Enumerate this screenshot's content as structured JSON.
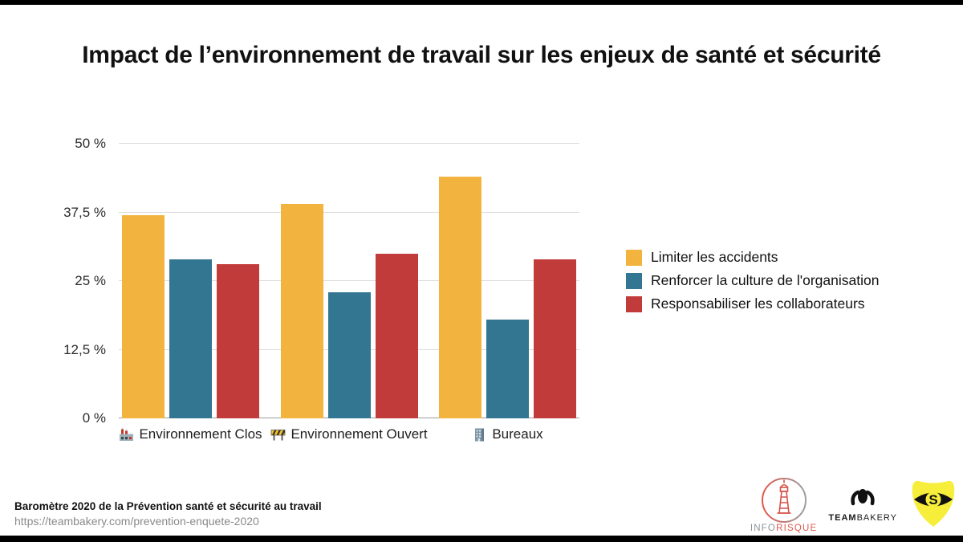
{
  "title": "Impact de l’environnement de travail sur les enjeux de santé et sécurité",
  "chart_data": {
    "type": "bar",
    "categories": [
      "Environnement Clos",
      "Environnement Ouvert",
      "Bureaux"
    ],
    "category_icons": [
      "factory-icon",
      "construction-barrier-icon",
      "office-building-icon"
    ],
    "series": [
      {
        "name": "Limiter les accidents",
        "color": "#F2B43F",
        "values": [
          37,
          39,
          44
        ]
      },
      {
        "name": "Renforcer la culture de l'organisation",
        "color": "#337691",
        "values": [
          29,
          23,
          18
        ]
      },
      {
        "name": "Responsabiliser les collaborateurs",
        "color": "#C23B3B",
        "values": [
          28,
          30,
          29
        ]
      }
    ],
    "unit": "%",
    "ylim": [
      0,
      50
    ],
    "ytick_values": [
      0,
      12.5,
      25,
      37.5,
      50
    ],
    "ytick_labels": [
      "0 %",
      "12,5 %",
      "25 %",
      "37,5 %",
      "50 %"
    ],
    "grid": true,
    "legend_position": "right"
  },
  "footer": {
    "source_title": "Baromètre 2020 de la Prévention santé et sécurité au travail",
    "source_url": "https://teambakery.com/prevention-enquete-2020"
  },
  "logos": {
    "inforisque": {
      "text_gray": "INFO",
      "text_red": "RISQUE",
      "accent_red": "#e05a4e",
      "accent_gray": "#8d9397"
    },
    "teambakery": {
      "text_bold": "TEAM",
      "text_light": "BAKERY"
    },
    "eye_shield": {
      "shield_color": "#F6EE3B",
      "eye_color": "#111111"
    }
  }
}
